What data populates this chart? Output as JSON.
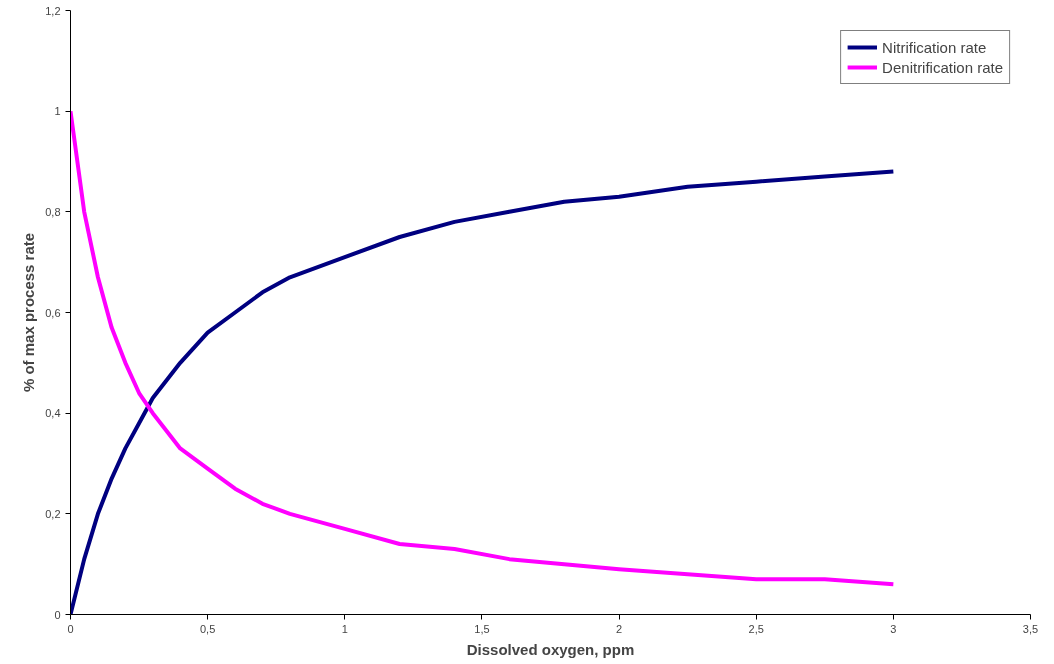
{
  "chart_data": {
    "type": "line",
    "xlabel": "Dissolved oxygen, ppm",
    "ylabel": "% of max process rate",
    "x": [
      0,
      0.05,
      0.1,
      0.15,
      0.2,
      0.25,
      0.3,
      0.4,
      0.5,
      0.6,
      0.7,
      0.8,
      1,
      1.2,
      1.4,
      1.6,
      1.8,
      2,
      2.25,
      2.5,
      2.75,
      3
    ],
    "series": [
      {
        "name": "Nitrification rate",
        "color": "#000080",
        "values": [
          0,
          0.11,
          0.2,
          0.27,
          0.33,
          0.38,
          0.43,
          0.5,
          0.56,
          0.6,
          0.64,
          0.67,
          0.71,
          0.75,
          0.78,
          0.8,
          0.82,
          0.83,
          0.85,
          0.86,
          0.87,
          0.88
        ]
      },
      {
        "name": "Denitrification rate",
        "color": "#ff00ff",
        "values": [
          1,
          0.8,
          0.67,
          0.57,
          0.5,
          0.44,
          0.4,
          0.33,
          0.29,
          0.25,
          0.22,
          0.2,
          0.17,
          0.14,
          0.13,
          0.11,
          0.1,
          0.09,
          0.08,
          0.07,
          0.07,
          0.06
        ]
      }
    ],
    "xlim": [
      0,
      3.5
    ],
    "ylim": [
      0,
      1.2
    ],
    "xticks": [
      0,
      {
        "value": 0.5,
        "label": "0,5"
      },
      1,
      {
        "value": 1.5,
        "label": "1,5"
      },
      2,
      {
        "value": 2.5,
        "label": "2,5"
      },
      3,
      {
        "value": 3.5,
        "label": "3,5"
      }
    ],
    "yticks": [
      0,
      {
        "value": 0.2,
        "label": "0,2"
      },
      {
        "value": 0.4,
        "label": "0,4"
      },
      {
        "value": 0.6,
        "label": "0,6"
      },
      {
        "value": 0.8,
        "label": "0,8"
      },
      1,
      {
        "value": 1.2,
        "label": "1,2"
      }
    ],
    "grid": false,
    "legend": "top right",
    "marker": "none",
    "line_style": "solid"
  }
}
